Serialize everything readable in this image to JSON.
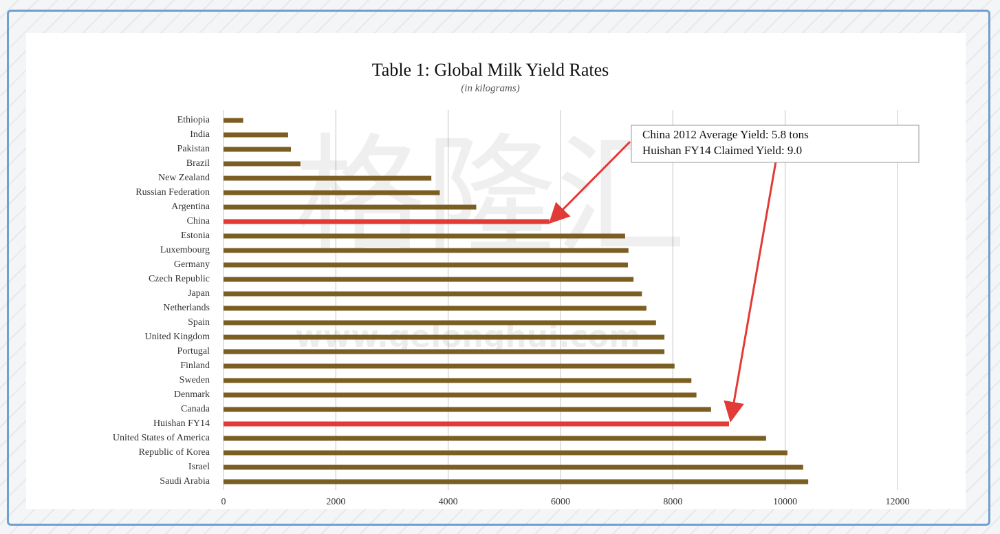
{
  "chart_data": {
    "type": "barh",
    "title": "Table 1: Global Milk Yield Rates",
    "subtitle": "(in kilograms)",
    "watermark": [
      "格隆汇",
      "www.gelonghui.com"
    ],
    "categories": [
      "Ethiopia",
      "India",
      "Pakistan",
      "Brazil",
      "New Zealand",
      "Russian Federation",
      "Argentina",
      "China",
      "Estonia",
      "Luxembourg",
      "Germany",
      "Czech Republic",
      "Japan",
      "Netherlands",
      "Spain",
      "United Kingdom",
      "Portugal",
      "Finland",
      "Sweden",
      "Denmark",
      "Canada",
      "Huishan FY14",
      "United States of America",
      "Republic of Korea",
      "Israel",
      "Saudi Arabia"
    ],
    "values": [
      350,
      1150,
      1200,
      1370,
      3700,
      3850,
      4500,
      5800,
      7150,
      7210,
      7200,
      7300,
      7450,
      7530,
      7700,
      7850,
      7850,
      8030,
      8330,
      8420,
      8680,
      9000,
      9660,
      10040,
      10320,
      10410
    ],
    "colors": [
      "#7b5e22",
      "#7b5e22",
      "#7b5e22",
      "#7b5e22",
      "#7b5e22",
      "#7b5e22",
      "#7b5e22",
      "#e23a36",
      "#7b5e22",
      "#7b5e22",
      "#7b5e22",
      "#7b5e22",
      "#7b5e22",
      "#7b5e22",
      "#7b5e22",
      "#7b5e22",
      "#7b5e22",
      "#7b5e22",
      "#7b5e22",
      "#7b5e22",
      "#7b5e22",
      "#e23a36",
      "#7b5e22",
      "#7b5e22",
      "#7b5e22",
      "#7b5e22"
    ],
    "xlim": [
      0,
      12000
    ],
    "xticks": [
      0,
      2000,
      4000,
      6000,
      8000,
      10000,
      12000
    ],
    "grid": true,
    "annotations": [
      "China 2012 Average Yield: 5.8 tons",
      "Huishan FY14 Claimed Yield: 9.0"
    ]
  }
}
